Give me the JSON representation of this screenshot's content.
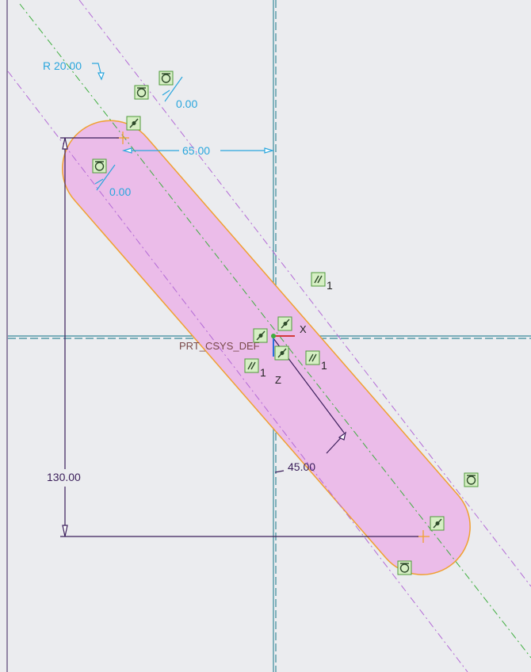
{
  "colors": {
    "background": "#ebecef",
    "slot_fill": "#ebbce9",
    "slot_edge": "#f0a030",
    "centerline": "#3fae3f",
    "tangent_line": "#b36ad6",
    "reference_axis": "#3a8a9a",
    "weak_dimension": "#2aa6dd",
    "strong_dimension": "#3a1e5a",
    "csys_label": "#7a4a4a",
    "constraint_box": "#d6efc4",
    "constraint_edge": "#4f9a3a"
  },
  "dimensions": {
    "radius": "R 20.00",
    "horizontal_offset": "65.00",
    "vertical_offset": "130.00",
    "angle": "45.00",
    "tangent_top": "0.00",
    "tangent_left": "0.00"
  },
  "csys": {
    "name": "PRT_CSYS_DEF",
    "x_axis": "X",
    "z_axis": "Z"
  },
  "constraints": {
    "parallel_index": "1",
    "icons": [
      "tangent-icon",
      "point-on-entity-icon",
      "parallel-icon"
    ]
  }
}
